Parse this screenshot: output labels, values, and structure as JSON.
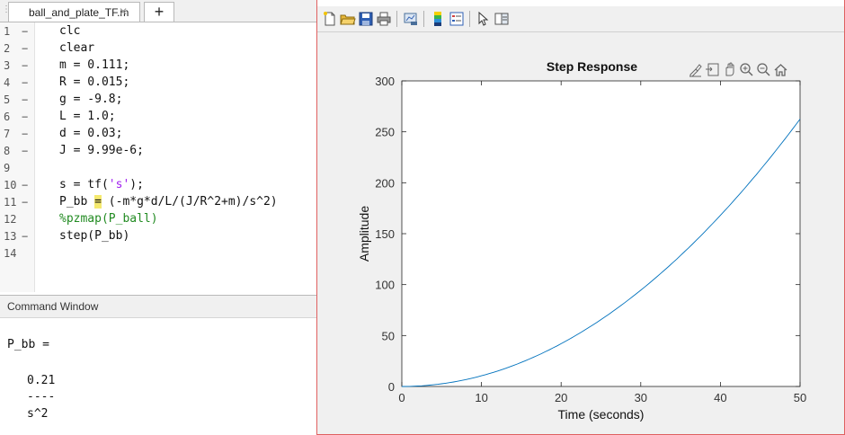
{
  "editor": {
    "tab_label": "ball_and_plate_TF.m",
    "tab_close": "✕",
    "tab_add": "+",
    "lines": [
      {
        "n": "1",
        "dash": "−",
        "parts": [
          {
            "t": "clc",
            "c": "plain"
          }
        ]
      },
      {
        "n": "2",
        "dash": "−",
        "parts": [
          {
            "t": "clear",
            "c": "plain"
          }
        ]
      },
      {
        "n": "3",
        "dash": "−",
        "parts": [
          {
            "t": "m = 0.111;",
            "c": "plain"
          }
        ]
      },
      {
        "n": "4",
        "dash": "−",
        "parts": [
          {
            "t": "R = 0.015;",
            "c": "plain"
          }
        ]
      },
      {
        "n": "5",
        "dash": "−",
        "parts": [
          {
            "t": "g = -9.8;",
            "c": "plain"
          }
        ]
      },
      {
        "n": "6",
        "dash": "−",
        "parts": [
          {
            "t": "L = 1.0;",
            "c": "plain"
          }
        ]
      },
      {
        "n": "7",
        "dash": "−",
        "parts": [
          {
            "t": "d = 0.03;",
            "c": "plain"
          }
        ]
      },
      {
        "n": "8",
        "dash": "−",
        "parts": [
          {
            "t": "J = 9.99e-6;",
            "c": "plain"
          }
        ]
      },
      {
        "n": "9",
        "dash": "",
        "parts": []
      },
      {
        "n": "10",
        "dash": "−",
        "parts": [
          {
            "t": "s = tf(",
            "c": "plain"
          },
          {
            "t": "'s'",
            "c": "str"
          },
          {
            "t": ");",
            "c": "plain"
          }
        ]
      },
      {
        "n": "11",
        "dash": "−",
        "parts": [
          {
            "t": "P_bb ",
            "c": "plain"
          },
          {
            "t": "=",
            "c": "eqhl"
          },
          {
            "t": " (-m*g*d/L/(J/R^2+m)/s^2)",
            "c": "plain"
          }
        ]
      },
      {
        "n": "12",
        "dash": "",
        "parts": [
          {
            "t": "%pzmap(P_ball)",
            "c": "cmt"
          }
        ]
      },
      {
        "n": "13",
        "dash": "−",
        "parts": [
          {
            "t": "step(P_bb)",
            "c": "plain"
          }
        ]
      },
      {
        "n": "14",
        "dash": "",
        "parts": []
      }
    ]
  },
  "command_window": {
    "title": "Command Window",
    "lines": [
      "P_bb =",
      "0.21",
      "----",
      "s^2"
    ]
  },
  "figure": {
    "toolbar_icons": [
      "new-figure-icon",
      "open-file-icon",
      "save-icon",
      "print-icon",
      "link-plot-icon",
      "colorbar-icon",
      "legend-icon",
      "pointer-icon",
      "property-inspector-icon"
    ],
    "axes_toolbar_icons": [
      "brush-icon",
      "data-tips-icon",
      "pan-icon",
      "zoom-in-icon",
      "zoom-out-icon",
      "home-icon"
    ]
  },
  "chart_data": {
    "type": "line",
    "title": "Step Response",
    "xlabel": "Time (seconds)",
    "ylabel": "Amplitude",
    "xlim": [
      0,
      50
    ],
    "ylim": [
      0,
      300
    ],
    "xticks": [
      "0",
      "10",
      "20",
      "30",
      "40",
      "50"
    ],
    "yticks": [
      "0",
      "50",
      "100",
      "150",
      "200",
      "250",
      "300"
    ],
    "series": [
      {
        "formula": "0.105*t^2",
        "color": "#0072bd",
        "x": [
          0,
          5,
          10,
          15,
          20,
          25,
          30,
          35,
          40,
          45,
          50
        ],
        "y": [
          0,
          2.6,
          10.5,
          23.6,
          42,
          65.6,
          94.5,
          128.6,
          168,
          212.6,
          262.5
        ]
      }
    ],
    "grid": false
  }
}
